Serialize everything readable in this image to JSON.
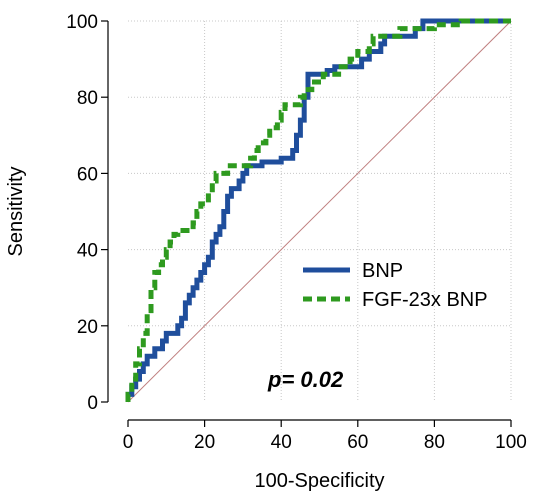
{
  "chart_data": {
    "type": "line",
    "title": "",
    "xlabel": "100-Specificity",
    "ylabel": "Sensitivity",
    "xlim": [
      0,
      100
    ],
    "ylim": [
      0,
      100
    ],
    "xticks": [
      0,
      20,
      40,
      60,
      80,
      100
    ],
    "yticks": [
      0,
      20,
      40,
      60,
      80,
      100
    ],
    "grid": true,
    "legend_position": "lower-right",
    "annotation": "p= 0.02",
    "reference_line": {
      "from": [
        0,
        0
      ],
      "to": [
        100,
        100
      ],
      "color": "#c08080"
    },
    "series": [
      {
        "name": "BNP",
        "color": "#1f4e9c",
        "points": [
          [
            0,
            0
          ],
          [
            0,
            2
          ],
          [
            1,
            2
          ],
          [
            1,
            4
          ],
          [
            2,
            4
          ],
          [
            2,
            6
          ],
          [
            3,
            6
          ],
          [
            3,
            8
          ],
          [
            4,
            8
          ],
          [
            4,
            10
          ],
          [
            5,
            10
          ],
          [
            5,
            12
          ],
          [
            7,
            12
          ],
          [
            7,
            14
          ],
          [
            9,
            14
          ],
          [
            9,
            16
          ],
          [
            10,
            16
          ],
          [
            10,
            18
          ],
          [
            13,
            18
          ],
          [
            13,
            20
          ],
          [
            14,
            20
          ],
          [
            14,
            22
          ],
          [
            15,
            22
          ],
          [
            15,
            24
          ],
          [
            15,
            26
          ],
          [
            16,
            26
          ],
          [
            16,
            28
          ],
          [
            17,
            28
          ],
          [
            17,
            30
          ],
          [
            18,
            30
          ],
          [
            18,
            32
          ],
          [
            19,
            32
          ],
          [
            19,
            34
          ],
          [
            20,
            34
          ],
          [
            20,
            36
          ],
          [
            21,
            36
          ],
          [
            21,
            38
          ],
          [
            22,
            38
          ],
          [
            22,
            40
          ],
          [
            22,
            42
          ],
          [
            23,
            42
          ],
          [
            23,
            44
          ],
          [
            24,
            44
          ],
          [
            24,
            46
          ],
          [
            25,
            46
          ],
          [
            25,
            48
          ],
          [
            25,
            50
          ],
          [
            26,
            50
          ],
          [
            26,
            52
          ],
          [
            26,
            54
          ],
          [
            27,
            54
          ],
          [
            27,
            56
          ],
          [
            29,
            56
          ],
          [
            29,
            58
          ],
          [
            30,
            58
          ],
          [
            30,
            60
          ],
          [
            31,
            60
          ],
          [
            31,
            62
          ],
          [
            35,
            62
          ],
          [
            35,
            63
          ],
          [
            40,
            63
          ],
          [
            40,
            64
          ],
          [
            43,
            64
          ],
          [
            43,
            66
          ],
          [
            44,
            66
          ],
          [
            44,
            70
          ],
          [
            45,
            70
          ],
          [
            45,
            74
          ],
          [
            46,
            74
          ],
          [
            46,
            78
          ],
          [
            46,
            80
          ],
          [
            47,
            80
          ],
          [
            47,
            83
          ],
          [
            47,
            86
          ],
          [
            52,
            86
          ],
          [
            52,
            87
          ],
          [
            54,
            87
          ],
          [
            54,
            88
          ],
          [
            61,
            88
          ],
          [
            61,
            90
          ],
          [
            63,
            90
          ],
          [
            63,
            92
          ],
          [
            66,
            92
          ],
          [
            66,
            94
          ],
          [
            67,
            94
          ],
          [
            67,
            96
          ],
          [
            75,
            96
          ],
          [
            75,
            98
          ],
          [
            77,
            98
          ],
          [
            77,
            100
          ],
          [
            100,
            100
          ]
        ]
      },
      {
        "name": "FGF-23x BNP",
        "color": "#2e9a1f",
        "points": [
          [
            0,
            0
          ],
          [
            0,
            2
          ],
          [
            1,
            2
          ],
          [
            1,
            4
          ],
          [
            1,
            6
          ],
          [
            2,
            6
          ],
          [
            2,
            8
          ],
          [
            2,
            10
          ],
          [
            3,
            10
          ],
          [
            3,
            14
          ],
          [
            4,
            14
          ],
          [
            4,
            18
          ],
          [
            5,
            18
          ],
          [
            5,
            22
          ],
          [
            5,
            24
          ],
          [
            6,
            24
          ],
          [
            6,
            28
          ],
          [
            6,
            30
          ],
          [
            7,
            30
          ],
          [
            7,
            34
          ],
          [
            8,
            34
          ],
          [
            8,
            36
          ],
          [
            9,
            36
          ],
          [
            9,
            38
          ],
          [
            10,
            38
          ],
          [
            10,
            40
          ],
          [
            11,
            40
          ],
          [
            11,
            42
          ],
          [
            12,
            42
          ],
          [
            12,
            44
          ],
          [
            13,
            44
          ],
          [
            13,
            45
          ],
          [
            17,
            45
          ],
          [
            17,
            47
          ],
          [
            18,
            47
          ],
          [
            18,
            50
          ],
          [
            19,
            50
          ],
          [
            19,
            52
          ],
          [
            21,
            52
          ],
          [
            21,
            55
          ],
          [
            22,
            55
          ],
          [
            22,
            58
          ],
          [
            23,
            58
          ],
          [
            23,
            60
          ],
          [
            26,
            60
          ],
          [
            26,
            62
          ],
          [
            32,
            62
          ],
          [
            32,
            64
          ],
          [
            33,
            64
          ],
          [
            33,
            66
          ],
          [
            34,
            66
          ],
          [
            34,
            68
          ],
          [
            36,
            68
          ],
          [
            36,
            70
          ],
          [
            37,
            70
          ],
          [
            37,
            72
          ],
          [
            39,
            72
          ],
          [
            39,
            74
          ],
          [
            40,
            74
          ],
          [
            40,
            76
          ],
          [
            41,
            76
          ],
          [
            41,
            78
          ],
          [
            45,
            78
          ],
          [
            45,
            80
          ],
          [
            46,
            80
          ],
          [
            46,
            82
          ],
          [
            48,
            82
          ],
          [
            48,
            84
          ],
          [
            51,
            84
          ],
          [
            51,
            86
          ],
          [
            55,
            86
          ],
          [
            55,
            88
          ],
          [
            58,
            88
          ],
          [
            58,
            90
          ],
          [
            60,
            90
          ],
          [
            60,
            92
          ],
          [
            63,
            92
          ],
          [
            63,
            94
          ],
          [
            64,
            94
          ],
          [
            64,
            96
          ],
          [
            71,
            96
          ],
          [
            71,
            98
          ],
          [
            80,
            98
          ],
          [
            80,
            99
          ],
          [
            87,
            99
          ],
          [
            87,
            100
          ],
          [
            100,
            100
          ]
        ]
      }
    ]
  }
}
